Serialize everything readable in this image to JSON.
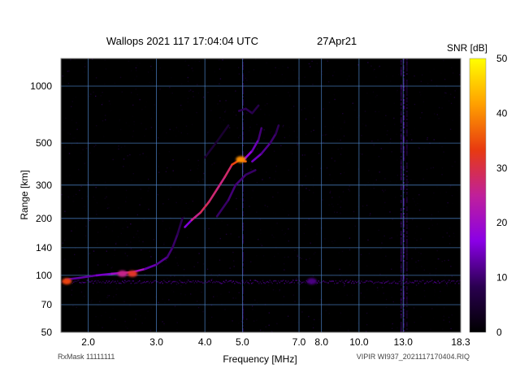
{
  "chart_data": {
    "type": "heatmap",
    "title": "Wallops 2021 117 17:04:04 UTC",
    "date": "27Apr21",
    "xlabel": "Frequency [MHz]",
    "ylabel": "Range [km]",
    "x_scale": "log",
    "y_scale": "log",
    "xlim": [
      1.7,
      18.3
    ],
    "ylim": [
      50,
      1400
    ],
    "x_ticks": [
      {
        "value": 2.0,
        "label": "2.0"
      },
      {
        "value": 3.0,
        "label": "3.0"
      },
      {
        "value": 4.0,
        "label": "4.0"
      },
      {
        "value": 5.0,
        "label": "5.0"
      },
      {
        "value": 7.0,
        "label": "7.0"
      },
      {
        "value": 8.0,
        "label": "8.0"
      },
      {
        "value": 10.0,
        "label": "10.0"
      },
      {
        "value": 13.0,
        "label": "13.0"
      },
      {
        "value": 18.3,
        "label": "18.3"
      }
    ],
    "y_ticks": [
      {
        "value": 50,
        "label": "50"
      },
      {
        "value": 70,
        "label": "70"
      },
      {
        "value": 100,
        "label": "100"
      },
      {
        "value": 140,
        "label": "140"
      },
      {
        "value": 200,
        "label": "200"
      },
      {
        "value": 300,
        "label": "300"
      },
      {
        "value": 500,
        "label": "500"
      },
      {
        "value": 1000,
        "label": "1000"
      }
    ],
    "grid": true,
    "colorbar": {
      "label": "SNR [dB]",
      "min": 0,
      "max": 50,
      "ticks": [
        0,
        10,
        20,
        30,
        40,
        50
      ],
      "colors": [
        "#000000",
        "#2a0050",
        "#8a00e6",
        "#c0209a",
        "#e83a10",
        "#ffa000",
        "#ffff00"
      ]
    },
    "traces": [
      {
        "id": "e-layer",
        "points": [
          [
            1.75,
            95,
            14
          ],
          [
            1.9,
            97,
            12
          ],
          [
            2.1,
            100,
            14
          ],
          [
            2.3,
            102,
            16
          ],
          [
            2.45,
            103,
            24
          ],
          [
            2.6,
            104,
            28
          ],
          [
            2.8,
            108,
            14
          ],
          [
            3.0,
            114,
            13
          ],
          [
            3.2,
            125,
            11
          ],
          [
            3.3,
            140,
            10
          ],
          [
            3.4,
            165,
            9
          ],
          [
            3.5,
            200,
            8
          ]
        ]
      },
      {
        "id": "f1-echo",
        "points": [
          [
            3.55,
            180,
            10
          ],
          [
            3.7,
            196,
            22
          ],
          [
            3.9,
            215,
            30
          ],
          [
            4.1,
            245,
            28
          ],
          [
            4.3,
            285,
            27
          ],
          [
            4.5,
            330,
            26
          ],
          [
            4.7,
            385,
            30
          ],
          [
            4.9,
            405,
            38
          ],
          [
            5.1,
            400,
            34
          ]
        ]
      },
      {
        "id": "f2-x-trace",
        "points": [
          [
            5.05,
            410,
            20
          ],
          [
            5.3,
            455,
            16
          ],
          [
            5.5,
            520,
            12
          ],
          [
            5.6,
            600,
            9
          ]
        ]
      },
      {
        "id": "f2-o-trace",
        "points": [
          [
            5.3,
            400,
            16
          ],
          [
            5.6,
            440,
            13
          ],
          [
            5.9,
            500,
            11
          ],
          [
            6.1,
            560,
            9
          ],
          [
            6.2,
            620,
            8
          ]
        ]
      },
      {
        "id": "lower-branch",
        "points": [
          [
            4.3,
            205,
            9
          ],
          [
            4.6,
            250,
            10
          ],
          [
            4.8,
            300,
            11
          ],
          [
            5.1,
            340,
            10
          ],
          [
            5.4,
            360,
            9
          ]
        ]
      },
      {
        "id": "faint-upper",
        "points": [
          [
            4.0,
            420,
            6
          ],
          [
            4.3,
            510,
            5
          ],
          [
            4.6,
            620,
            5
          ]
        ]
      },
      {
        "id": "spread-f",
        "points": [
          [
            4.9,
            740,
            8
          ],
          [
            5.1,
            760,
            9
          ],
          [
            5.3,
            720,
            8
          ],
          [
            5.5,
            790,
            7
          ]
        ]
      }
    ],
    "blobs": [
      {
        "freq": 1.76,
        "range": 93,
        "snr": 34
      },
      {
        "freq": 2.6,
        "range": 102,
        "snr": 32
      },
      {
        "freq": 2.45,
        "range": 102,
        "snr": 26
      },
      {
        "freq": 7.55,
        "range": 93,
        "snr": 11
      },
      {
        "freq": 4.95,
        "range": 410,
        "snr": 40
      }
    ],
    "interference": [
      {
        "freq": 12.8,
        "snr": 8
      },
      {
        "freq": 13.0,
        "snr": 11
      },
      {
        "freq": 13.25,
        "snr": 6
      },
      {
        "freq": 5.0,
        "snr": 7
      }
    ],
    "ground_line_range": 93
  },
  "footer": {
    "left": "RxMask 11111111",
    "right": "VIPIR  WI937_2021117170404.RIQ"
  }
}
